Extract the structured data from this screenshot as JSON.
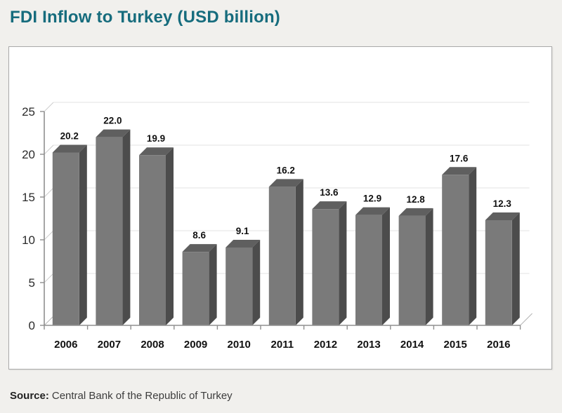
{
  "header": {
    "title": "FDI Inflow to Turkey (USD billion)",
    "title_color": "#166c7d"
  },
  "source": {
    "label": "Source:",
    "text": "Central Bank of the Republic of Turkey"
  },
  "chart_data": {
    "type": "bar",
    "style": "3d-column",
    "title": "FDI Inflow to Turkey (USD billion)",
    "categories": [
      "2006",
      "2007",
      "2008",
      "2009",
      "2010",
      "2011",
      "2012",
      "2013",
      "2014",
      "2015",
      "2016"
    ],
    "values": [
      20.2,
      22.0,
      19.9,
      8.6,
      9.1,
      16.2,
      13.6,
      12.9,
      12.8,
      17.6,
      12.3
    ],
    "value_labels": [
      "20.2",
      "22.0",
      "19.9",
      "8.6",
      "9.1",
      "16.2",
      "13.6",
      "12.9",
      "12.8",
      "17.6",
      "12.3"
    ],
    "xlabel": "",
    "ylabel": "",
    "ylim": [
      0,
      25
    ],
    "yticks": [
      0,
      5,
      10,
      15,
      20,
      25
    ],
    "grid": true,
    "legend": false,
    "colors": {
      "bar_front": "#7a7a7a",
      "bar_top": "#5f5f5f",
      "bar_side": "#4c4c4c",
      "axis": "#8f8f8f",
      "gridline": "#e3e3e3",
      "grid_diagonal": "#cdcdcd",
      "floor_edge": "#b5b5b5",
      "label_text": "#111111",
      "ytick_text": "#2b2b2b"
    }
  }
}
